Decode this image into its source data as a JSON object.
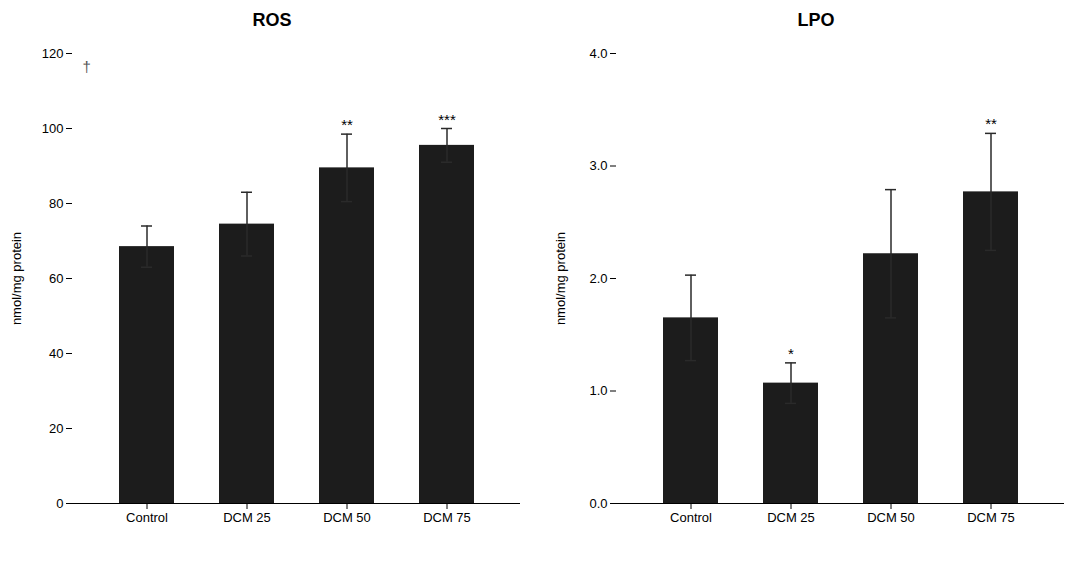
{
  "chart_data": [
    {
      "type": "bar",
      "title": "ROS",
      "categories": [
        "Control",
        "DCM 25",
        "DCM 50",
        "DCM 75"
      ],
      "values": [
        68.5,
        74.5,
        89.5,
        95.5
      ],
      "errors": [
        5.5,
        8.5,
        9.0,
        4.5
      ],
      "significance": [
        null,
        null,
        "**",
        "***"
      ],
      "ylabel": "nmol/mg protein",
      "color": "#1c1c1c",
      "ylim": [
        0,
        120
      ],
      "yticks": [
        0,
        20,
        40,
        60,
        80,
        100,
        120
      ],
      "annotations": [
        "†"
      ],
      "grid": false
    },
    {
      "type": "bar",
      "title": "LPO",
      "categories": [
        "Control",
        "DCM 25",
        "DCM 50",
        "DCM 75"
      ],
      "values": [
        1.65,
        1.07,
        2.22,
        2.77
      ],
      "errors": [
        0.38,
        0.18,
        0.57,
        0.52
      ],
      "significance": [
        null,
        "*",
        null,
        "**"
      ],
      "ylabel": "nmol/mg protein",
      "color": "#1c1c1c",
      "ylim": [
        0,
        4.0
      ],
      "yticks": [
        {
          "value": 0.0,
          "label": "0.0"
        },
        {
          "value": 1.0,
          "label": "1.0"
        },
        {
          "value": 2.0,
          "label": "2.0"
        },
        {
          "value": 3.0,
          "label": "3.0"
        },
        {
          "value": 4.0,
          "label": "4.0"
        }
      ],
      "grid": false
    }
  ]
}
